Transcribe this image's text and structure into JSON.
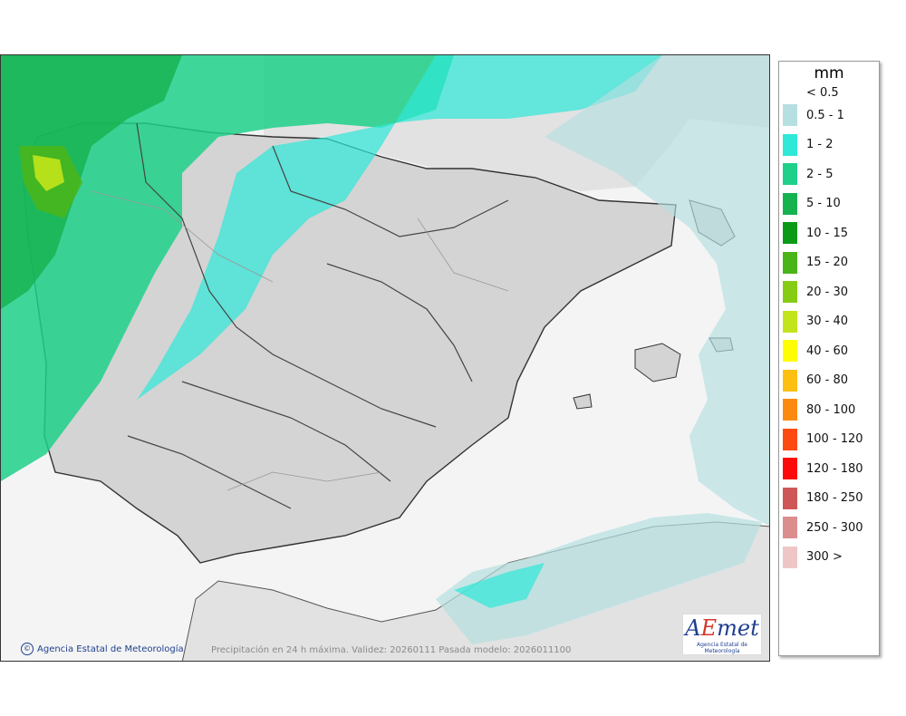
{
  "map": {
    "credit": "Agencia Estatal de Meteorología",
    "caption": "Precipitación en 24 h máxima. Validez: 20260111 Pasada modelo: 2026011100",
    "logo_text": "AEmet",
    "logo_subtext": "Agencia Estatal de Meteorología"
  },
  "legend": {
    "unit": "mm",
    "first_label": "< 0.5",
    "items": [
      {
        "label": "0.5 - 1",
        "color": "#b5dfe0"
      },
      {
        "label": "1 - 2",
        "color": "#2ee8d8"
      },
      {
        "label": "2 - 5",
        "color": "#1ed08a"
      },
      {
        "label": "5 - 10",
        "color": "#16b24e"
      },
      {
        "label": "10 - 15",
        "color": "#0a9a16"
      },
      {
        "label": "15 - 20",
        "color": "#4ab518"
      },
      {
        "label": "20 - 30",
        "color": "#86cc14"
      },
      {
        "label": "30 - 40",
        "color": "#c2e41a"
      },
      {
        "label": "40 - 60",
        "color": "#fefe00"
      },
      {
        "label": "60 - 80",
        "color": "#fdc010"
      },
      {
        "label": "80 - 100",
        "color": "#fd8a10"
      },
      {
        "label": "100 - 120",
        "color": "#fd4a10"
      },
      {
        "label": "120 - 180",
        "color": "#fd0a0a"
      },
      {
        "label": "180 - 250",
        "color": "#cf5656"
      },
      {
        "label": "250 - 300",
        "color": "#dc8e8e"
      },
      {
        "label": "300 >",
        "color": "#efc6c6"
      }
    ]
  }
}
